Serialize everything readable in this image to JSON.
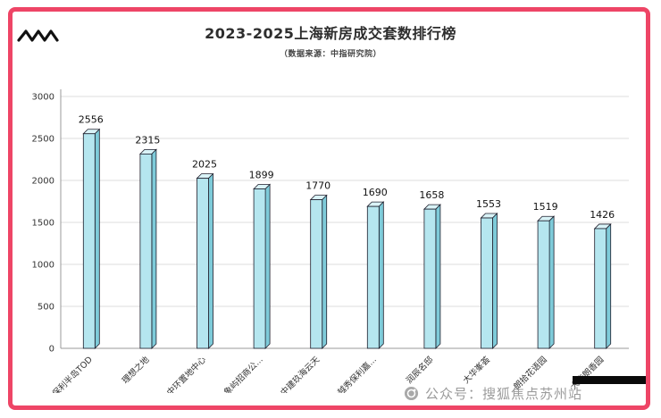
{
  "frame": {
    "accent_color": "#ee4566",
    "background_color": "#ffffff"
  },
  "header": {
    "title": "2023-2025上海新房成交套数排行榜",
    "subtitle": "（数据来源：中指研究院）"
  },
  "chart_data": {
    "type": "bar",
    "title": "2023-2025上海新房成交套数排行榜",
    "subtitle": "（数据来源：中指研究院）",
    "categories": [
      "保利半岛TOD",
      "理想之地",
      "中环置地中心",
      "象屿招商公...",
      "中建玖海云天",
      "越秀保利嘉...",
      "润辰名邸",
      "大华峯荟",
      "朗拾花语园",
      "大华朗香园"
    ],
    "values": [
      2556,
      2315,
      2025,
      1899,
      1770,
      1690,
      1658,
      1553,
      1519,
      1426
    ],
    "xlabel": "",
    "ylabel": "",
    "ylim": [
      0,
      3000
    ],
    "yticks": [
      0,
      500,
      1000,
      1500,
      2000,
      2500,
      3000
    ],
    "grid": "on",
    "legend": "none",
    "bar_color": "#b5e6ef",
    "bar_side_color": "#7ecbd9",
    "bar_top_color": "#d9f3f7",
    "bar_outline_color": "#1d1d2b",
    "grid_color": "#dcdcdc",
    "axis_color": "#999999",
    "label_color": "#111111"
  },
  "watermark": {
    "label": "公众号：搜狐焦点苏州站",
    "icon": "sohu-focus-logo"
  },
  "decor": {
    "zigzag_logo": "zigzag-logo",
    "bottom_black_bar": "black-bar"
  }
}
